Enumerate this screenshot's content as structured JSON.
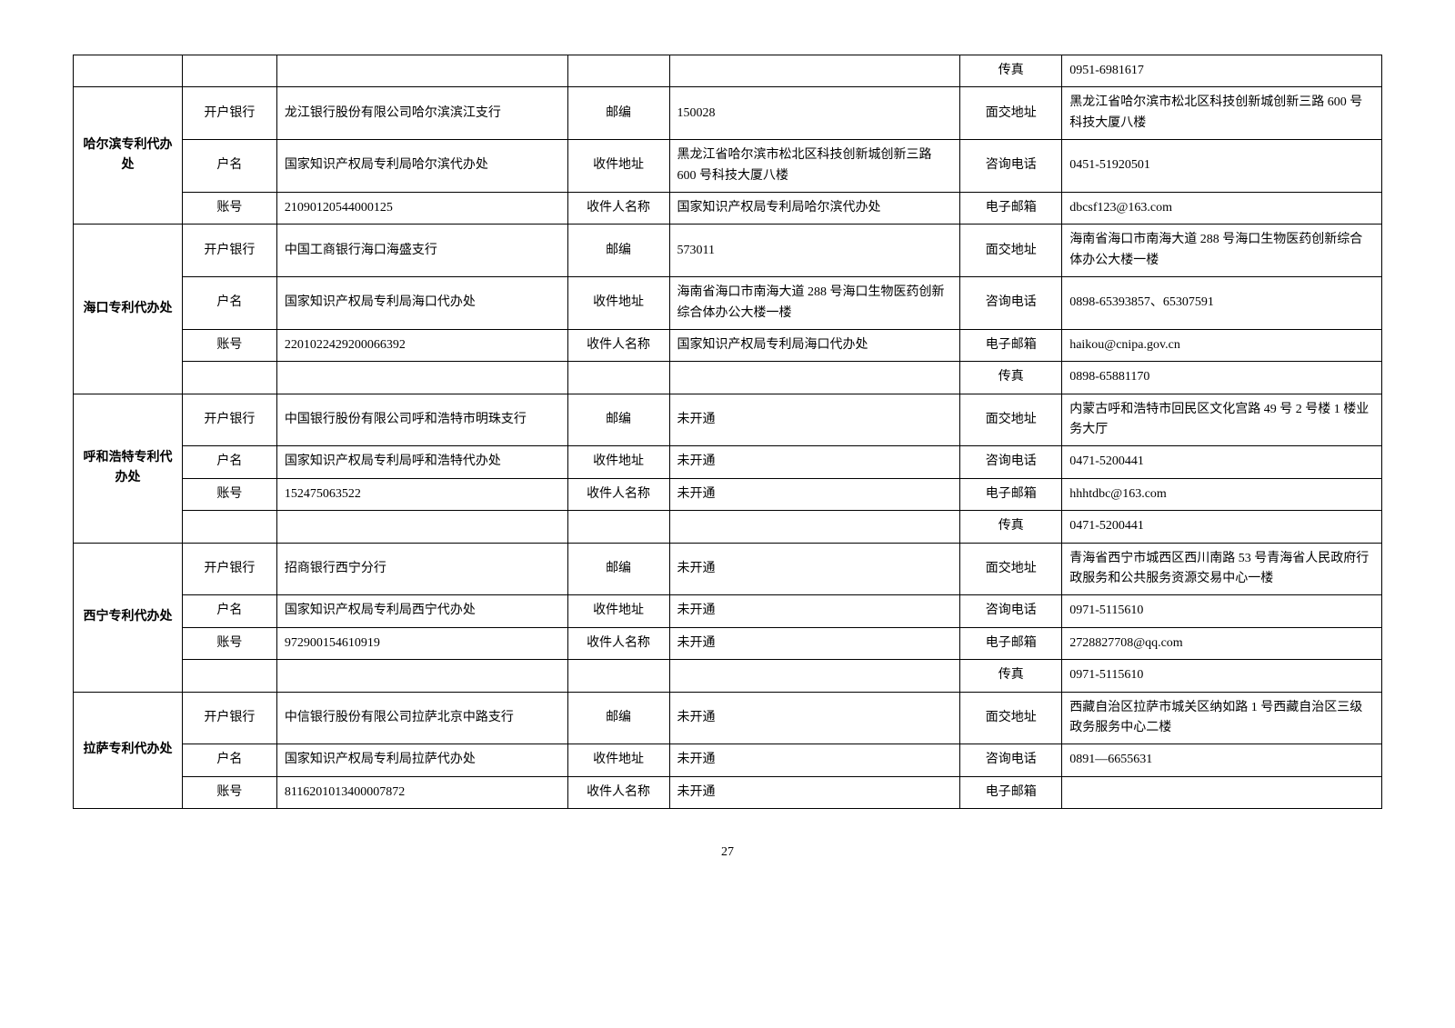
{
  "page_number": "27",
  "labels": {
    "bank": "开户银行",
    "account_name": "户名",
    "account_number": "账号",
    "postcode": "邮编",
    "mail_address": "收件地址",
    "recipient": "收件人名称",
    "visit_address": "面交地址",
    "phone": "咨询电话",
    "email": "电子邮箱",
    "fax": "传真"
  },
  "offices": [
    {
      "name": "",
      "rows": [
        {
          "l1": "",
          "v1": "",
          "l2": "",
          "v2": "",
          "l3": "传真",
          "v3": "0951-6981617"
        }
      ]
    },
    {
      "name": "哈尔滨专利代办处",
      "rows": [
        {
          "l1": "开户银行",
          "v1": "龙江银行股份有限公司哈尔滨滨江支行",
          "l2": "邮编",
          "v2": "150028",
          "l3": "面交地址",
          "v3": "黑龙江省哈尔滨市松北区科技创新城创新三路 600 号科技大厦八楼"
        },
        {
          "l1": "户名",
          "v1": "国家知识产权局专利局哈尔滨代办处",
          "l2": "收件地址",
          "v2": "黑龙江省哈尔滨市松北区科技创新城创新三路 600 号科技大厦八楼",
          "l3": "咨询电话",
          "v3": "0451-51920501"
        },
        {
          "l1": "账号",
          "v1": "21090120544000125",
          "l2": "收件人名称",
          "v2": "国家知识产权局专利局哈尔滨代办处",
          "l3": "电子邮箱",
          "v3": "dbcsf123@163.com"
        }
      ]
    },
    {
      "name": "海口专利代办处",
      "rows": [
        {
          "l1": "开户银行",
          "v1": "中国工商银行海口海盛支行",
          "l2": "邮编",
          "v2": "573011",
          "l3": "面交地址",
          "v3": "海南省海口市南海大道 288 号海口生物医药创新综合体办公大楼一楼"
        },
        {
          "l1": "户名",
          "v1": "国家知识产权局专利局海口代办处",
          "l2": "收件地址",
          "v2": "海南省海口市南海大道 288 号海口生物医药创新综合体办公大楼一楼",
          "l3": "咨询电话",
          "v3": "0898-65393857、65307591"
        },
        {
          "l1": "账号",
          "v1": "2201022429200066392",
          "l2": "收件人名称",
          "v2": "国家知识产权局专利局海口代办处",
          "l3": "电子邮箱",
          "v3": "haikou@cnipa.gov.cn"
        },
        {
          "l1": "",
          "v1": "",
          "l2": "",
          "v2": "",
          "l3": "传真",
          "v3": "0898-65881170"
        }
      ]
    },
    {
      "name": "呼和浩特专利代办处",
      "rows": [
        {
          "l1": "开户银行",
          "v1": "中国银行股份有限公司呼和浩特市明珠支行",
          "l2": "邮编",
          "v2": "未开通",
          "l3": "面交地址",
          "v3": "内蒙古呼和浩特市回民区文化宫路 49 号 2 号楼 1 楼业务大厅"
        },
        {
          "l1": "户名",
          "v1": "国家知识产权局专利局呼和浩特代办处",
          "l2": "收件地址",
          "v2": "未开通",
          "l3": "咨询电话",
          "v3": "0471-5200441"
        },
        {
          "l1": "账号",
          "v1": "152475063522",
          "l2": "收件人名称",
          "v2": "未开通",
          "l3": "电子邮箱",
          "v3": "hhhtdbc@163.com"
        },
        {
          "l1": "",
          "v1": "",
          "l2": "",
          "v2": "",
          "l3": "传真",
          "v3": "0471-5200441"
        }
      ]
    },
    {
      "name": "西宁专利代办处",
      "rows": [
        {
          "l1": "开户银行",
          "v1": "招商银行西宁分行",
          "l2": "邮编",
          "v2": "未开通",
          "l3": "面交地址",
          "v3": "青海省西宁市城西区西川南路 53 号青海省人民政府行政服务和公共服务资源交易中心一楼"
        },
        {
          "l1": "户名",
          "v1": "国家知识产权局专利局西宁代办处",
          "l2": "收件地址",
          "v2": "未开通",
          "l3": "咨询电话",
          "v3": "0971-5115610"
        },
        {
          "l1": "账号",
          "v1": "972900154610919",
          "l2": "收件人名称",
          "v2": "未开通",
          "l3": "电子邮箱",
          "v3": "2728827708@qq.com"
        },
        {
          "l1": "",
          "v1": "",
          "l2": "",
          "v2": "",
          "l3": "传真",
          "v3": "0971-5115610"
        }
      ]
    },
    {
      "name": "拉萨专利代办处",
      "rows": [
        {
          "l1": "开户银行",
          "v1": "中信银行股份有限公司拉萨北京中路支行",
          "l2": "邮编",
          "v2": "未开通",
          "l3": "面交地址",
          "v3": "西藏自治区拉萨市城关区纳如路 1 号西藏自治区三级政务服务中心二楼"
        },
        {
          "l1": "户名",
          "v1": "国家知识产权局专利局拉萨代办处",
          "l2": "收件地址",
          "v2": "未开通",
          "l3": "咨询电话",
          "v3": "0891—6655631"
        },
        {
          "l1": "账号",
          "v1": "8116201013400007872",
          "l2": "收件人名称",
          "v2": "未开通",
          "l3": "电子邮箱",
          "v3": ""
        }
      ]
    }
  ]
}
